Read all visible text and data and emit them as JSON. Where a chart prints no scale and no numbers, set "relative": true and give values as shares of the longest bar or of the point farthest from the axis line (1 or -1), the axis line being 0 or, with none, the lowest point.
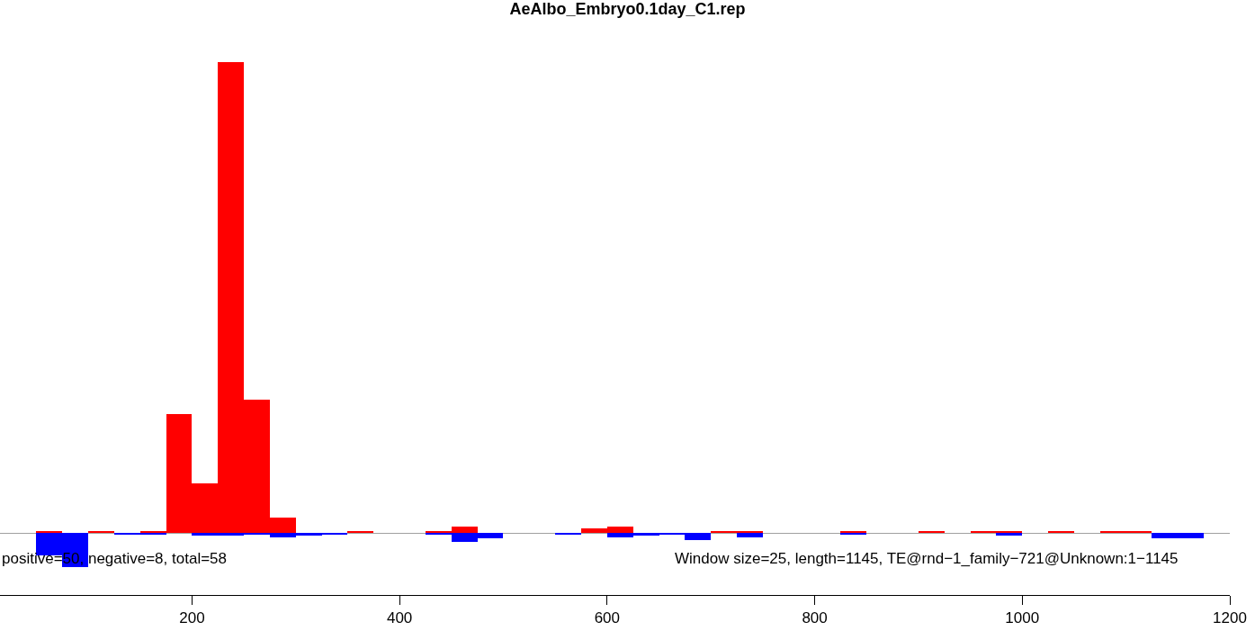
{
  "chart_data": {
    "type": "bar",
    "title": "AeAlbo_Embryo0.1day_C1.rep",
    "relative": true,
    "xlim": [
      15,
      1200
    ],
    "xticks": [
      200,
      400,
      600,
      800,
      1000,
      1200
    ],
    "series": [
      {
        "color": "#ff0000",
        "x": [
          62.5,
          112.5,
          162.5,
          187.5,
          212.5,
          237.5,
          262.5,
          287.5,
          362.5,
          437.5,
          462.5,
          587.5,
          612.5,
          712.5,
          737.5,
          837.5,
          912.5,
          962.5,
          987.5,
          1037.5,
          1087.5,
          1112.5
        ],
        "values": [
          0.004,
          0.004,
          0.004,
          0.253,
          0.106,
          1,
          0.284,
          0.032,
          0.005,
          0.005,
          0.013,
          0.009,
          0.013,
          0.004,
          0.005,
          0.004,
          0.004,
          0.004,
          0.004,
          0.004,
          0.005,
          0.004
        ]
      },
      {
        "color": "#0000ff",
        "x": [
          62.5,
          87.5,
          137.5,
          162.5,
          212.5,
          237.5,
          262.5,
          287.5,
          312.5,
          337.5,
          437.5,
          462.5,
          487.5,
          562.5,
          612.5,
          637.5,
          662.5,
          687.5,
          737.5,
          837.5,
          987.5,
          1137.5,
          1162.5
        ],
        "values": [
          -0.047,
          -0.072,
          -0.004,
          -0.004,
          -0.005,
          -0.005,
          -0.003,
          -0.009,
          -0.006,
          -0.004,
          -0.004,
          -0.018,
          -0.011,
          -0.002,
          -0.009,
          -0.005,
          -0.004,
          -0.014,
          -0.009,
          -0.004,
          -0.006,
          -0.011,
          -0.011
        ]
      }
    ],
    "annotations": [
      "positive=50, negative=8, total=58",
      "Window size=25, length=1145, TE@rnd−1_family−721@Unknown:1−1145"
    ]
  }
}
